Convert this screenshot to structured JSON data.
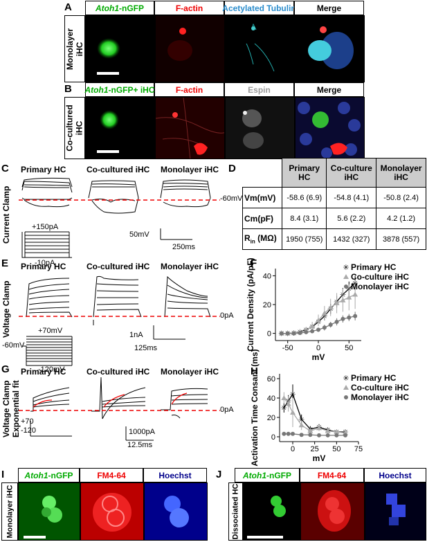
{
  "panels": {
    "A": {
      "letter": "A",
      "headers": [
        {
          "text": "-nGFP",
          "gene": "Atoh1",
          "color": "#0a0"
        },
        {
          "text": "F-actin",
          "color": "#e00"
        },
        {
          "text": "Acetylated Tubulin",
          "color": "#2a8ccc"
        },
        {
          "text": "Merge",
          "color": "#000"
        }
      ],
      "row_label_1": "Monolayer",
      "row_label_2": "iHC"
    },
    "B": {
      "letter": "B",
      "headers": [
        {
          "text": "-nGFP+ iHC",
          "gene": "Atoh1",
          "color": "#0a0"
        },
        {
          "text": "F-actin",
          "color": "#e00"
        },
        {
          "text": "Espin",
          "color": "#999"
        },
        {
          "text": "Merge",
          "color": "#000"
        }
      ],
      "row_label_1": "Co-cultured",
      "row_label_2": "iHC"
    },
    "C": {
      "letter": "C",
      "side_label": "Current Clamp",
      "cols": [
        "Primary HC",
        "Co-cultured iHC",
        "Monolayer iHC"
      ],
      "ref_label": "-60mV",
      "stim_top": "+150pA",
      "stim_bottom": "-10pA",
      "scale_v": "50mV",
      "scale_t": "250ms"
    },
    "D": {
      "letter": "D",
      "table": {
        "col_headers": [
          [
            "Primary",
            "HC"
          ],
          [
            "Co-culture",
            "iHC"
          ],
          [
            "Monolayer",
            "iHC"
          ]
        ],
        "rows": [
          {
            "label": "Vm(mV)",
            "values": [
              "-58.6 (6.9)",
              "-54.8 (4.1)",
              "-50.8 (2.4)"
            ]
          },
          {
            "label": "Cm(pF)",
            "values": [
              "8.4 (3.1)",
              "5.6 (2.2)",
              "4.2 (1.2)"
            ]
          },
          {
            "label": "R",
            "sub": "in",
            "unit": " (MΩ)",
            "values": [
              "1950 (755)",
              "1432 (327)",
              "3878 (557)"
            ]
          }
        ]
      }
    },
    "E": {
      "letter": "E",
      "side_label": "Voltage Clamp",
      "cols": [
        "Primary HC",
        "Co-cultured iHC",
        "Monolayer iHC"
      ],
      "ref_label": "0pA",
      "hold": "-60mV",
      "stim_top": "+70mV",
      "stim_bottom": "-120mV",
      "scale_i": "1nA",
      "scale_t": "125ms"
    },
    "G": {
      "letter": "G",
      "side_label_1": "Voltage Clamp",
      "side_label_2": "Exponential fit",
      "cols": [
        "Primary HC",
        "Co-cultured iHC",
        "Monolayer iHC"
      ],
      "ref_label": "0pA",
      "stim_top": "+70",
      "stim_bottom": "-120",
      "scale_i": "1000pA",
      "scale_t": "12.5ms"
    },
    "I": {
      "letter": "I",
      "headers": [
        {
          "text": "-nGFP",
          "gene": "Atoh1",
          "color": "#0a0"
        },
        {
          "text": "FM4-64",
          "color": "#e00"
        },
        {
          "text": "Hoechst",
          "color": "#00008b"
        }
      ],
      "row_label": "Monolayer iHC"
    },
    "J": {
      "letter": "J",
      "headers": [
        {
          "text": "-nGFP",
          "gene": "Atoh1",
          "color": "#0a0"
        },
        {
          "text": "FM4-64",
          "color": "#e00"
        },
        {
          "text": "Hoechst",
          "color": "#00008b"
        }
      ],
      "row_label": "Dissociated HC"
    }
  },
  "chart_data": [
    {
      "panel": "F",
      "type": "line",
      "xlabel": "mV",
      "ylabel": "Current Density (pA/pF)",
      "xlim": [
        -70,
        70
      ],
      "ylim": [
        -5,
        45
      ],
      "xticks": [
        -50,
        0,
        50
      ],
      "yticks": [
        0,
        20,
        40
      ],
      "x": [
        -60,
        -50,
        -40,
        -30,
        -20,
        -10,
        0,
        10,
        20,
        30,
        40,
        50,
        60
      ],
      "series": [
        {
          "name": "Primary HC",
          "marker": "star",
          "color": "#000",
          "values": [
            0,
            0,
            0.3,
            1,
            2.5,
            4.5,
            8,
            12,
            17,
            22,
            27,
            31,
            35
          ],
          "err": [
            0.5,
            0.5,
            0.5,
            1,
            1.5,
            2,
            2.5,
            3,
            3.5,
            4,
            4.5,
            5,
            5
          ]
        },
        {
          "name": "Co-culture iHC",
          "marker": "triangle",
          "color": "#aaa",
          "values": [
            0,
            0,
            0.2,
            0.8,
            2,
            5,
            9,
            14,
            18,
            21,
            23,
            25,
            27
          ],
          "err": [
            0.5,
            0.5,
            0.5,
            1,
            2,
            3,
            4,
            5,
            6,
            7,
            8,
            9,
            10
          ]
        },
        {
          "name": "Monolayer iHC",
          "marker": "circle",
          "color": "#777",
          "values": [
            0,
            0,
            0,
            0.3,
            0.8,
            1.5,
            2.5,
            4,
            6,
            8,
            10,
            11,
            12
          ],
          "err": [
            0.3,
            0.3,
            0.3,
            0.5,
            0.8,
            1,
            1.5,
            2,
            2,
            2.5,
            2.5,
            2.5,
            3
          ]
        }
      ]
    },
    {
      "panel": "H",
      "type": "line",
      "xlabel": "mV",
      "ylabel": "Activation Time Consant (ms)",
      "xlim": [
        -15,
        75
      ],
      "ylim": [
        -5,
        65
      ],
      "xticks": [
        0,
        25,
        50,
        75
      ],
      "yticks": [
        0,
        20,
        40,
        60
      ],
      "x": [
        -10,
        -5,
        0,
        10,
        20,
        30,
        40,
        50,
        60
      ],
      "series": [
        {
          "name": "Primary HC",
          "marker": "star",
          "color": "#000",
          "values": [
            30,
            37,
            44,
            18,
            8,
            10,
            7,
            5,
            5
          ],
          "err": [
            5,
            6,
            10,
            5,
            3,
            3,
            2,
            2,
            2
          ]
        },
        {
          "name": "Co-culture iHC",
          "marker": "triangle",
          "color": "#aaa",
          "values": [
            40,
            34,
            25,
            12,
            6,
            9,
            6,
            5,
            4
          ],
          "err": [
            6,
            8,
            15,
            5,
            3,
            3,
            2,
            2,
            2
          ]
        },
        {
          "name": "Monolayer iHC",
          "marker": "circle",
          "color": "#777",
          "values": [
            3,
            3,
            3,
            2,
            2,
            1.5,
            1.5,
            1.5,
            1.5
          ],
          "err": [
            1,
            1,
            1,
            0.5,
            0.5,
            0.5,
            0.5,
            0.5,
            0.5
          ]
        }
      ]
    }
  ]
}
